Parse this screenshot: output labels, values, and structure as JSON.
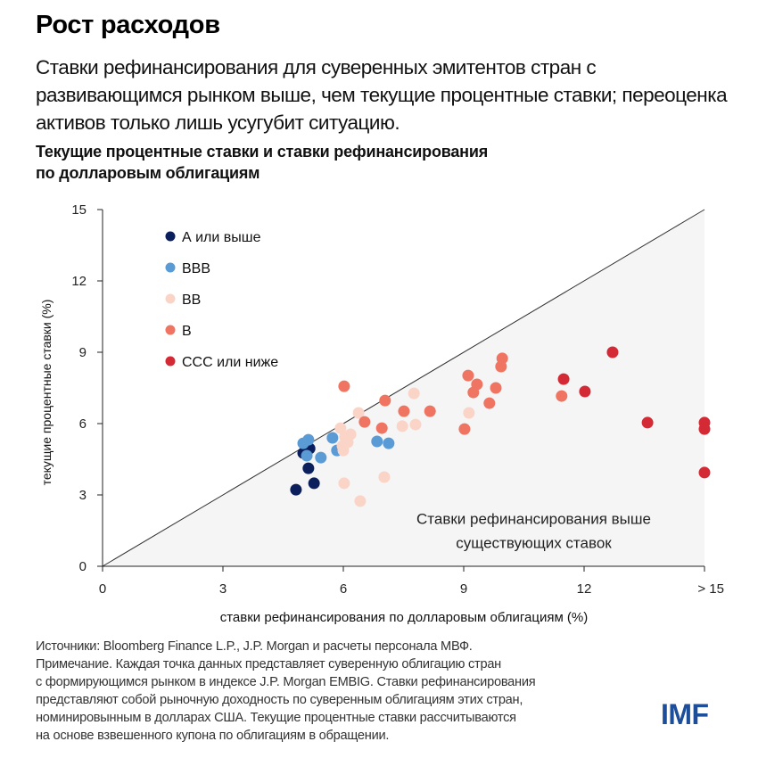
{
  "header": {
    "title": "Рост расходов",
    "subtitle": "Ставки рефинансирования для суверенных эмитентов стран с развивающимся рынком выше, чем текущие процентные ставки; переоценка активов только лишь усугубит ситуацию.",
    "chart_title_line1": "Текущие процентные ставки и ставки рефинансирования",
    "chart_title_line2": "по долларовым облигациям"
  },
  "footer": {
    "notes": [
      "Источники: Bloomberg Finance L.P., J.P. Morgan и расчеты персонала МВФ.",
      "Примечание. Каждая точка данных представляет суверенную облигацию стран",
      "с формирующимся рынком в индексе J.P. Morgan EMBIG. Ставки рефинансирования",
      "представляют собой рыночную доходность по суверенным облигациям этих стран,",
      "номинировынным в долларах США. Текущие процентные ставки рассчитываются",
      "на основе взвешенного купона по облигациям в обращении."
    ],
    "logo": "IMF"
  },
  "chart_data": {
    "type": "scatter",
    "title": "Текущие процентные ставки и ставки рефинансирования по долларовым облигациям",
    "xlabel": "ставки рефинансирования по долларовым облигациям (%)",
    "ylabel": "текущие процентные ставки (%)",
    "xlim": [
      0,
      15
    ],
    "ylim": [
      0,
      15
    ],
    "x_ticks": [
      0,
      3,
      6,
      9,
      12,
      15
    ],
    "x_tick_labels": [
      "0",
      "3",
      "6",
      "9",
      "12",
      "> 15"
    ],
    "y_ticks": [
      0,
      3,
      6,
      9,
      12,
      15
    ],
    "y_tick_labels": [
      "0",
      "3",
      "6",
      "9",
      "12",
      "15"
    ],
    "grid": false,
    "legend_position": "top-left",
    "reference_line": {
      "type": "45-degree",
      "from": [
        0,
        0
      ],
      "to": [
        15,
        15
      ]
    },
    "shaded_region": {
      "description": "below 45-degree line",
      "color": "#f5f5f5"
    },
    "annotation": {
      "line1": "Ставки рефинансирования выше",
      "line2": "существующих ставок",
      "anchor": [
        10.5,
        1.6
      ]
    },
    "series": [
      {
        "name": "А или выше",
        "color": "#0b1f5c",
        "points": [
          [
            4.82,
            3.22
          ],
          [
            5.27,
            3.49
          ],
          [
            5.13,
            4.12
          ],
          [
            5.0,
            4.76
          ],
          [
            5.16,
            4.95
          ],
          [
            5.04,
            5.1
          ]
        ]
      },
      {
        "name": "BBB",
        "color": "#5b9bd5",
        "points": [
          [
            5.0,
            5.17
          ],
          [
            5.13,
            5.32
          ],
          [
            5.09,
            4.65
          ],
          [
            5.44,
            4.57
          ],
          [
            5.73,
            5.4
          ],
          [
            5.84,
            4.87
          ],
          [
            6.84,
            5.25
          ],
          [
            7.13,
            5.17
          ]
        ]
      },
      {
        "name": "BB",
        "color": "#fbd4c8",
        "points": [
          [
            5.93,
            5.81
          ],
          [
            5.98,
            5.06
          ],
          [
            6.04,
            5.44
          ],
          [
            6.18,
            5.55
          ],
          [
            6.38,
            6.45
          ],
          [
            6.02,
            3.49
          ],
          [
            6.42,
            2.74
          ],
          [
            7.02,
            3.75
          ],
          [
            7.47,
            5.89
          ],
          [
            7.76,
            7.27
          ],
          [
            7.8,
            5.96
          ],
          [
            9.13,
            6.45
          ],
          [
            6.0,
            4.87
          ],
          [
            6.11,
            5.21
          ]
        ]
      },
      {
        "name": "B",
        "color": "#ef7462",
        "points": [
          [
            6.02,
            7.57
          ],
          [
            6.53,
            6.07
          ],
          [
            6.96,
            5.81
          ],
          [
            7.04,
            6.97
          ],
          [
            7.51,
            6.52
          ],
          [
            8.16,
            6.52
          ],
          [
            9.02,
            5.77
          ],
          [
            9.11,
            8.02
          ],
          [
            9.24,
            7.31
          ],
          [
            9.33,
            7.65
          ],
          [
            9.64,
            6.86
          ],
          [
            9.8,
            7.5
          ],
          [
            9.93,
            8.4
          ],
          [
            9.96,
            8.74
          ],
          [
            11.44,
            7.16
          ]
        ]
      },
      {
        "name": "CCC или ниже",
        "color": "#d42a35",
        "points": [
          [
            11.49,
            7.87
          ],
          [
            12.02,
            7.35
          ],
          [
            12.71,
            9.0
          ],
          [
            13.58,
            6.04
          ],
          [
            15.0,
            6.04
          ],
          [
            15.0,
            5.77
          ],
          [
            15.0,
            3.94
          ]
        ]
      }
    ]
  }
}
